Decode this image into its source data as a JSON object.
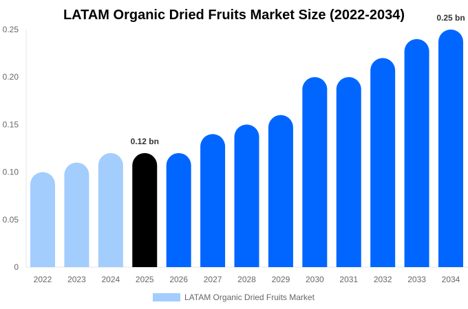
{
  "chart_data": {
    "type": "bar",
    "title": "LATAM Organic Dried Fruits Market Size (2022-2034)",
    "categories": [
      "2022",
      "2023",
      "2024",
      "2025",
      "2026",
      "2027",
      "2028",
      "2029",
      "2030",
      "2031",
      "2032",
      "2033",
      "2034"
    ],
    "series": [
      {
        "name": "LATAM Organic Dried Fruits Market",
        "values": [
          0.1,
          0.11,
          0.12,
          0.12,
          0.12,
          0.14,
          0.15,
          0.16,
          0.2,
          0.2,
          0.22,
          0.24,
          0.25
        ]
      }
    ],
    "ylim": [
      0,
      0.25
    ],
    "yticks": [
      "0",
      "0.05",
      "0.10",
      "0.15",
      "0.20",
      "0.25"
    ],
    "yticks_values": [
      0,
      0.05,
      0.1,
      0.15,
      0.2,
      0.25
    ],
    "annotations": [
      {
        "category": "2025",
        "text": "0.12 bn"
      },
      {
        "category": "2034",
        "text": "0.25 bn"
      }
    ],
    "colors": {
      "historical": "#a3cdfd",
      "current": "#000000",
      "forecast": "#0066ff"
    },
    "bar_color_groups": [
      "historical",
      "historical",
      "historical",
      "current",
      "forecast",
      "forecast",
      "forecast",
      "forecast",
      "forecast",
      "forecast",
      "forecast",
      "forecast",
      "forecast"
    ],
    "legend": {
      "label": "LATAM Organic Dried Fruits Market",
      "position": "bottom"
    },
    "grid": false
  }
}
